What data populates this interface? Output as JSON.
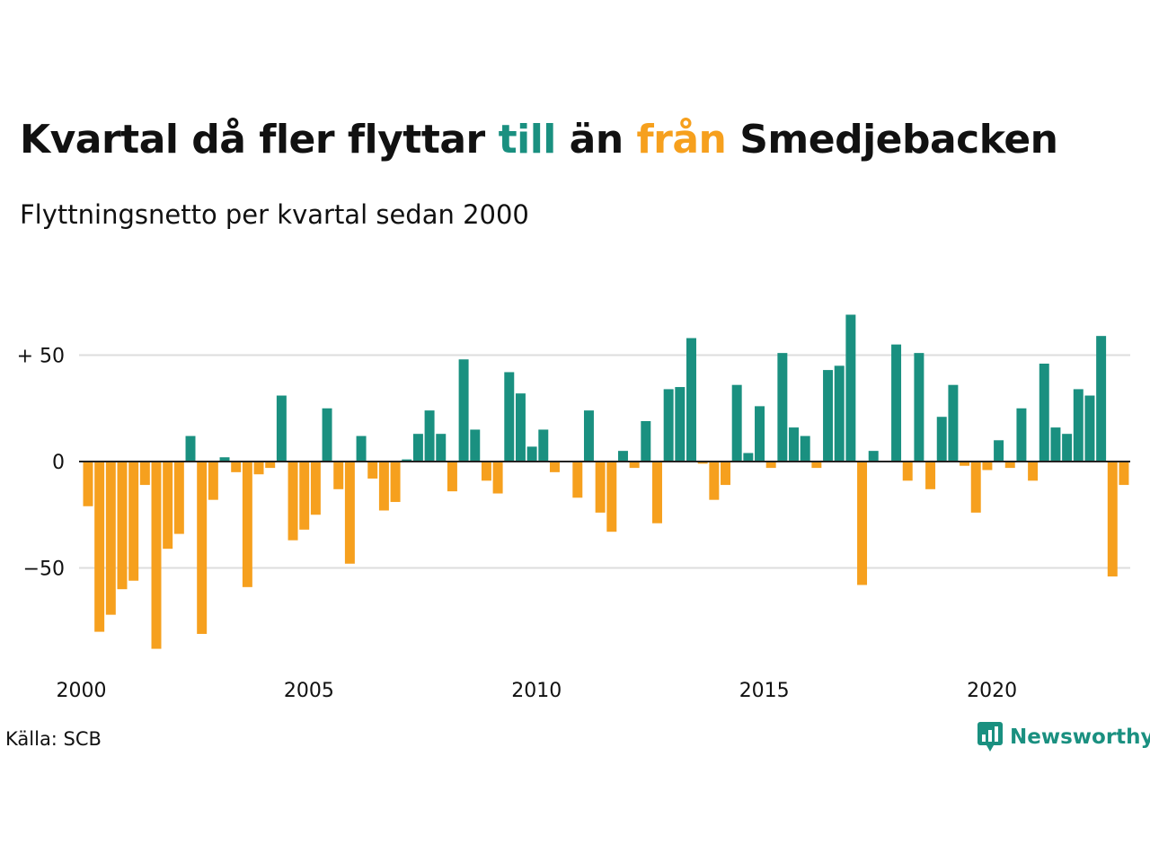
{
  "title": {
    "part1": "Kvartal då fler flyttar ",
    "till": "till",
    "part2": " än ",
    "fran": "från",
    "part3": " Smedjebacken"
  },
  "subtitle": "Flyttningsnetto per kvartal sedan 2000",
  "source": "Källa: SCB",
  "brand": "Newsworthy",
  "colors": {
    "positive": "#1a9080",
    "negative": "#f6a01e",
    "grid": "#dddddd",
    "zero": "#222222"
  },
  "chart_data": {
    "type": "bar",
    "x_start": 2000,
    "x_step": 0.25,
    "values": [
      -21,
      -80,
      -72,
      -60,
      -56,
      -11,
      -88,
      -41,
      -34,
      12,
      -81,
      -18,
      2,
      -5,
      -59,
      -6,
      -3,
      31,
      -37,
      -32,
      -25,
      25,
      -13,
      -48,
      12,
      -8,
      -23,
      -19,
      1,
      13,
      24,
      13,
      -14,
      48,
      15,
      -9,
      -15,
      42,
      32,
      7,
      15,
      -5,
      0,
      -17,
      24,
      -24,
      -33,
      5,
      -3,
      19,
      -29,
      34,
      35,
      58,
      -1,
      -18,
      -11,
      36,
      4,
      26,
      -3,
      51,
      16,
      12,
      -3,
      43,
      45,
      69,
      -58,
      5,
      0,
      55,
      -9,
      51,
      -13,
      21,
      36,
      -2,
      -24,
      -4,
      10,
      -3,
      25,
      -9,
      46,
      16,
      13,
      34,
      31,
      59,
      -54,
      -11
    ],
    "ylim": [
      -90,
      70
    ],
    "yticks": [
      {
        "value": 50,
        "label": "+ 50"
      },
      {
        "value": 0,
        "label": "0"
      },
      {
        "value": -50,
        "label": "−50"
      }
    ],
    "xticks": [
      {
        "value": 2000,
        "label": "2000"
      },
      {
        "value": 2005,
        "label": "2005"
      },
      {
        "value": 2010,
        "label": "2010"
      },
      {
        "value": 2015,
        "label": "2015"
      },
      {
        "value": 2020,
        "label": "2020"
      }
    ],
    "grid": true,
    "legend": "none"
  }
}
